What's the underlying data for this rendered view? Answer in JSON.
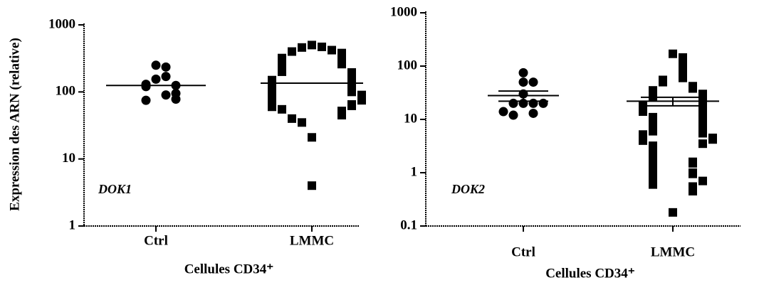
{
  "chart_data": [
    {
      "type": "dotplot",
      "ylabel": "Expression des ARN (relative)",
      "xlabel": "Cellules CD34⁺",
      "annotation": "DOK1",
      "categories": [
        "Ctrl",
        "LMMC"
      ],
      "markers": [
        "circle",
        "square"
      ],
      "color": "#000000",
      "log_scale": true,
      "ylim": [
        1,
        1000
      ],
      "yticks": [
        1,
        10,
        100,
        1000
      ],
      "values": [
        [
          250,
          235,
          155,
          170,
          130,
          120,
          125,
          90,
          95,
          75,
          78
        ],
        [
          500,
          470,
          460,
          420,
          400,
          380,
          370,
          350,
          330,
          320,
          300,
          290,
          280,
          260,
          250,
          240,
          230,
          220,
          210,
          200,
          195,
          190,
          180,
          175,
          170,
          160,
          155,
          150,
          145,
          140,
          135,
          130,
          125,
          120,
          118,
          115,
          110,
          105,
          100,
          98,
          95,
          92,
          90,
          88,
          85,
          80,
          78,
          75,
          72,
          70,
          68,
          65,
          62,
          60,
          55,
          52,
          50,
          48,
          45,
          40,
          35,
          21,
          4
        ]
      ],
      "mean": [
        125,
        135
      ]
    },
    {
      "type": "dotplot",
      "xlabel": "Cellules CD34⁺",
      "annotation": "DOK2",
      "categories": [
        "Ctrl",
        "LMMC"
      ],
      "markers": [
        "circle",
        "square"
      ],
      "color": "#000000",
      "log_scale": true,
      "ylim": [
        0.1,
        1000
      ],
      "yticks": [
        0.1,
        1,
        10,
        100,
        1000
      ],
      "values": [
        [
          75,
          50,
          50,
          30,
          20,
          20,
          20,
          20,
          14,
          13,
          12
        ],
        [
          170,
          145,
          110,
          90,
          75,
          60,
          55,
          50,
          42,
          40,
          38,
          35,
          33,
          30,
          28,
          26,
          25,
          24,
          22,
          20,
          19,
          18,
          17,
          16,
          15,
          14,
          13,
          12,
          11,
          10,
          9.5,
          9,
          8,
          7.5,
          7,
          6.5,
          6,
          5.8,
          5.5,
          5.2,
          5,
          4.8,
          4.5,
          4.2,
          4,
          3.5,
          3.2,
          3,
          2.8,
          2.6,
          2.4,
          2.2,
          2,
          1.8,
          1.6,
          1.5,
          1.4,
          1.3,
          1.2,
          1,
          0.95,
          0.9,
          0.85,
          0.8,
          0.7,
          0.65,
          0.6,
          0.55,
          0.45,
          0.18
        ]
      ],
      "mean": [
        28,
        22
      ],
      "error": [
        6,
        4
      ]
    }
  ]
}
